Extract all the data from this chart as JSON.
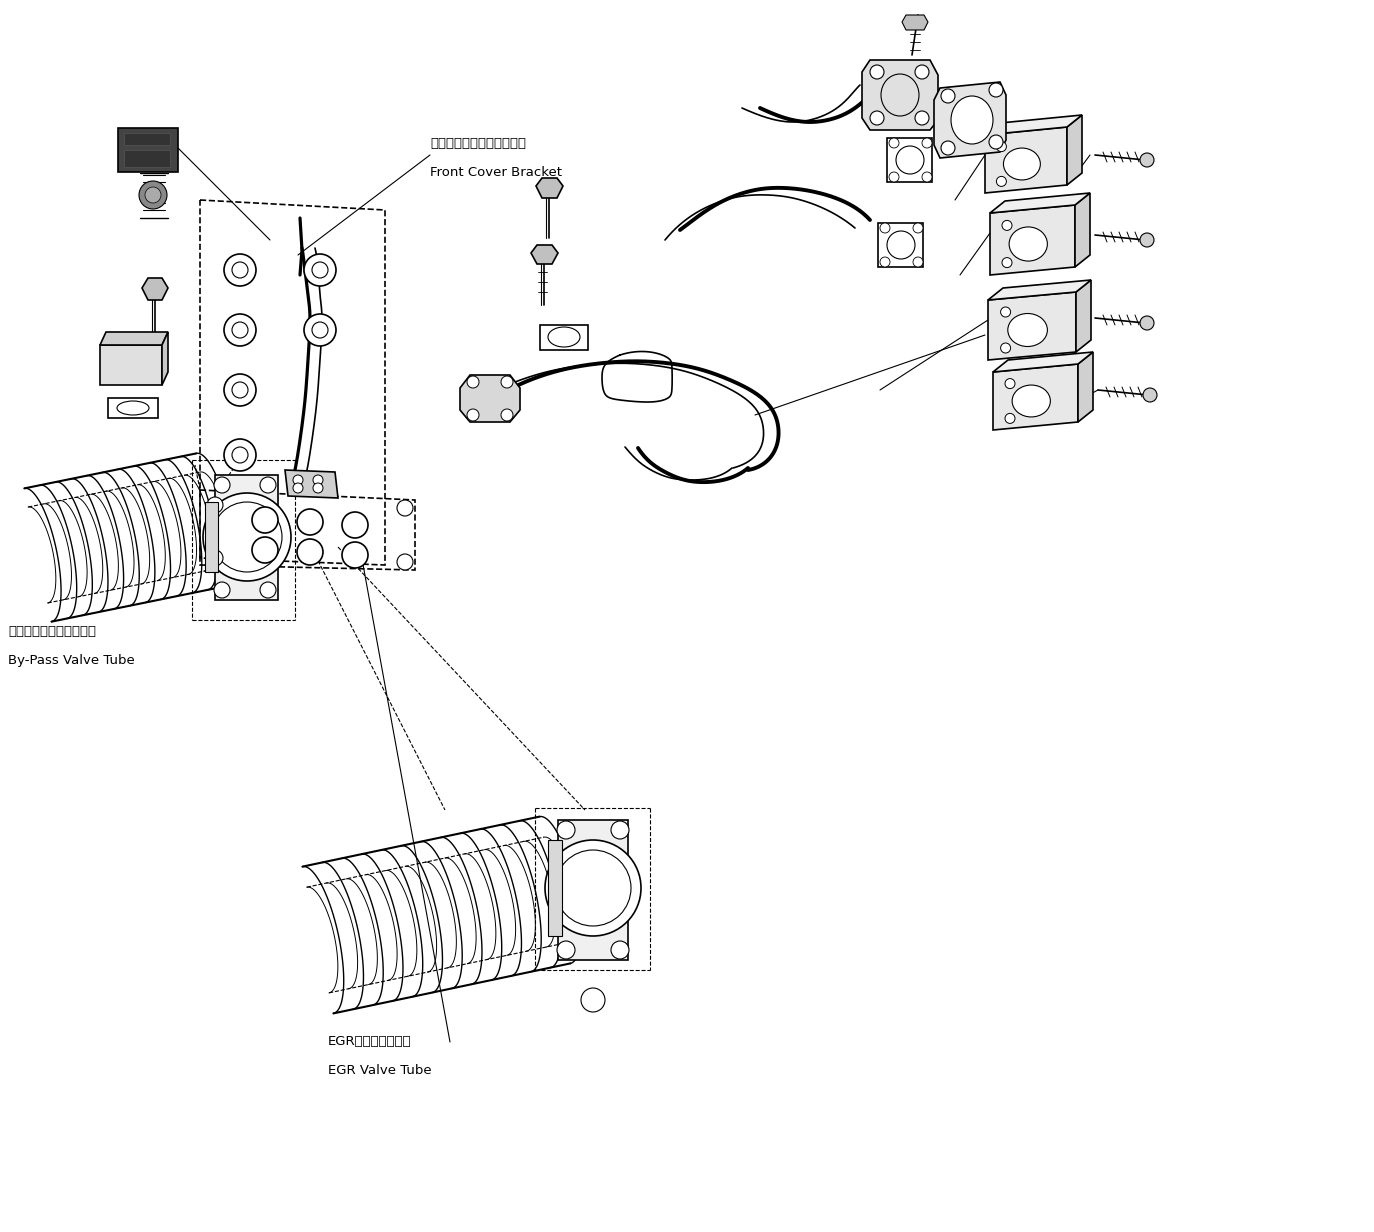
{
  "bg_color": "#ffffff",
  "line_color": "#000000",
  "label_front_cover_jp": "フロントカバーブラケット",
  "label_front_cover_en": "Front Cover Bracket",
  "label_bypass_jp": "バイパスバルブチューブ",
  "label_bypass_en": "By-Pass Valve Tube",
  "label_egr_jp": "EGRバルブチューブ",
  "label_egr_en": "EGR Valve Tube",
  "figsize": [
    13.74,
    12.32
  ],
  "dpi": 100
}
